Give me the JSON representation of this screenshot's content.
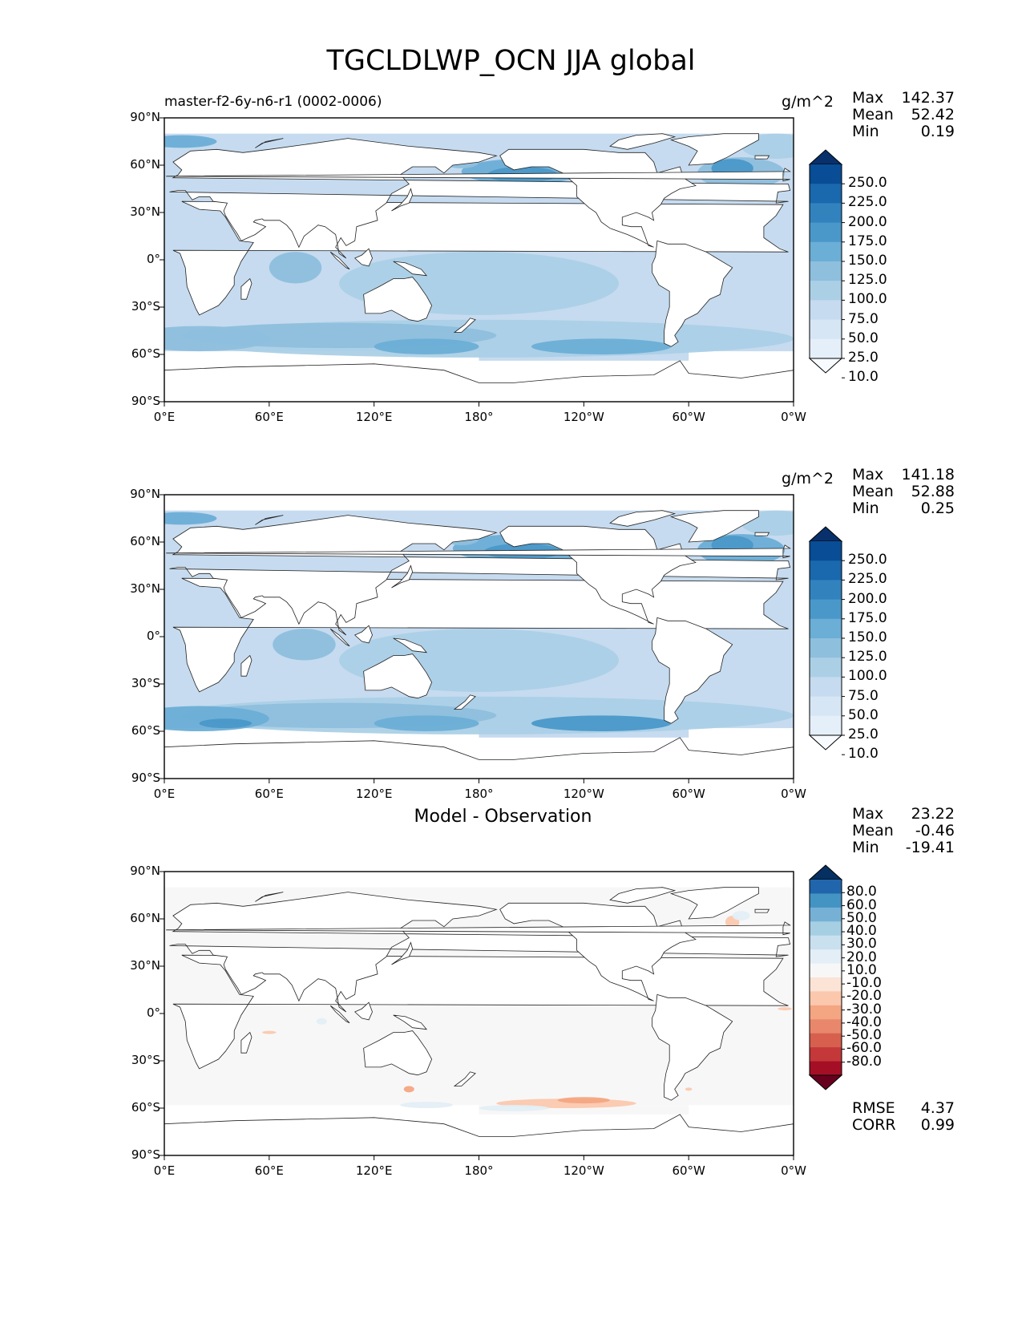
{
  "title": "TGCLDLWP_OCN JJA global",
  "axes": {
    "lat_ticks": [
      "90°N",
      "60°N",
      "30°N",
      "0°",
      "30°S",
      "60°S",
      "90°S"
    ],
    "lon_ticks": [
      "0°E",
      "60°E",
      "120°E",
      "180°",
      "120°W",
      "60°W",
      "0°W"
    ]
  },
  "panels": [
    {
      "title_left": "master-f2-6y-n6-r1 (0002-0006)",
      "title_center": "",
      "units": "g/m^2",
      "stats": [
        {
          "label": "Max",
          "value": "142.37"
        },
        {
          "label": "Mean",
          "value": "52.42"
        },
        {
          "label": "Min",
          "value": "0.19"
        }
      ],
      "colorbar_labels": [
        "250.0",
        "225.0",
        "200.0",
        "175.0",
        "150.0",
        "125.0",
        "100.0",
        "75.0",
        "50.0",
        "25.0",
        "10.0"
      ],
      "colorbar_colors": [
        "#f7fbff",
        "#e5eff9",
        "#d6e6f4",
        "#c6dbef",
        "#abd0e6",
        "#8ebfdd",
        "#6baed6",
        "#4a98c9",
        "#3282be",
        "#1a68ad",
        "#084d96",
        "#08306b"
      ]
    },
    {
      "title_left": "",
      "title_center": "",
      "units": "g/m^2",
      "stats": [
        {
          "label": "Max",
          "value": "141.18"
        },
        {
          "label": "Mean",
          "value": "52.88"
        },
        {
          "label": "Min",
          "value": "0.25"
        }
      ],
      "colorbar_labels": [
        "250.0",
        "225.0",
        "200.0",
        "175.0",
        "150.0",
        "125.0",
        "100.0",
        "75.0",
        "50.0",
        "25.0",
        "10.0"
      ],
      "colorbar_colors": [
        "#f7fbff",
        "#e5eff9",
        "#d6e6f4",
        "#c6dbef",
        "#abd0e6",
        "#8ebfdd",
        "#6baed6",
        "#4a98c9",
        "#3282be",
        "#1a68ad",
        "#084d96",
        "#08306b"
      ]
    },
    {
      "title_left": "",
      "title_center": "Model - Observation",
      "units": "",
      "stats": [
        {
          "label": "Max",
          "value": "23.22"
        },
        {
          "label": "Mean",
          "value": "-0.46"
        },
        {
          "label": "Min",
          "value": "-19.41"
        }
      ],
      "extra_stats": [
        {
          "label": "RMSE",
          "value": "4.37"
        },
        {
          "label": "CORR",
          "value": "0.99"
        }
      ],
      "colorbar_labels": [
        "80.0",
        "60.0",
        "50.0",
        "40.0",
        "30.0",
        "20.0",
        "10.0",
        "-10.0",
        "-20.0",
        "-30.0",
        "-40.0",
        "-50.0",
        "-60.0",
        "-80.0"
      ],
      "colorbar_colors": [
        "#67001f",
        "#a50f26",
        "#c4383a",
        "#d6604d",
        "#e8876b",
        "#f4a582",
        "#fbc8ae",
        "#fbe3d5",
        "#f7f7f7",
        "#e3eef6",
        "#c9e0ee",
        "#a6cfe4",
        "#76b1d5",
        "#4393c3",
        "#2166ac",
        "#053061"
      ]
    }
  ]
}
